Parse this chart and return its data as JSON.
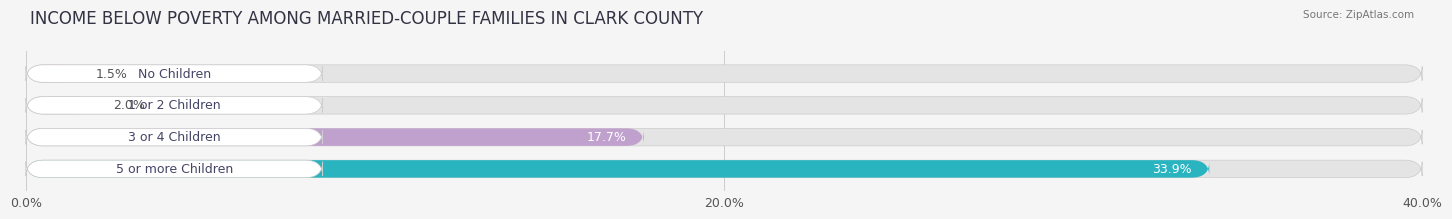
{
  "title": "INCOME BELOW POVERTY AMONG MARRIED-COUPLE FAMILIES IN CLARK COUNTY",
  "source": "Source: ZipAtlas.com",
  "categories": [
    "No Children",
    "1 or 2 Children",
    "3 or 4 Children",
    "5 or more Children"
  ],
  "values": [
    1.5,
    2.0,
    17.7,
    33.9
  ],
  "bar_colors": [
    "#f2a0a8",
    "#a0b4e0",
    "#c0a0cc",
    "#2ab4c0"
  ],
  "label_colors": [
    "#555555",
    "#555555",
    "#555555",
    "#ffffff"
  ],
  "xlim": [
    0,
    40
  ],
  "xticks": [
    0.0,
    20.0,
    40.0
  ],
  "xtick_labels": [
    "0.0%",
    "20.0%",
    "40.0%"
  ],
  "background_color": "#f5f5f5",
  "bar_bg_color": "#e4e4e4",
  "title_fontsize": 12,
  "tick_fontsize": 9,
  "label_fontsize": 9,
  "value_fontsize": 9,
  "bar_height": 0.55
}
